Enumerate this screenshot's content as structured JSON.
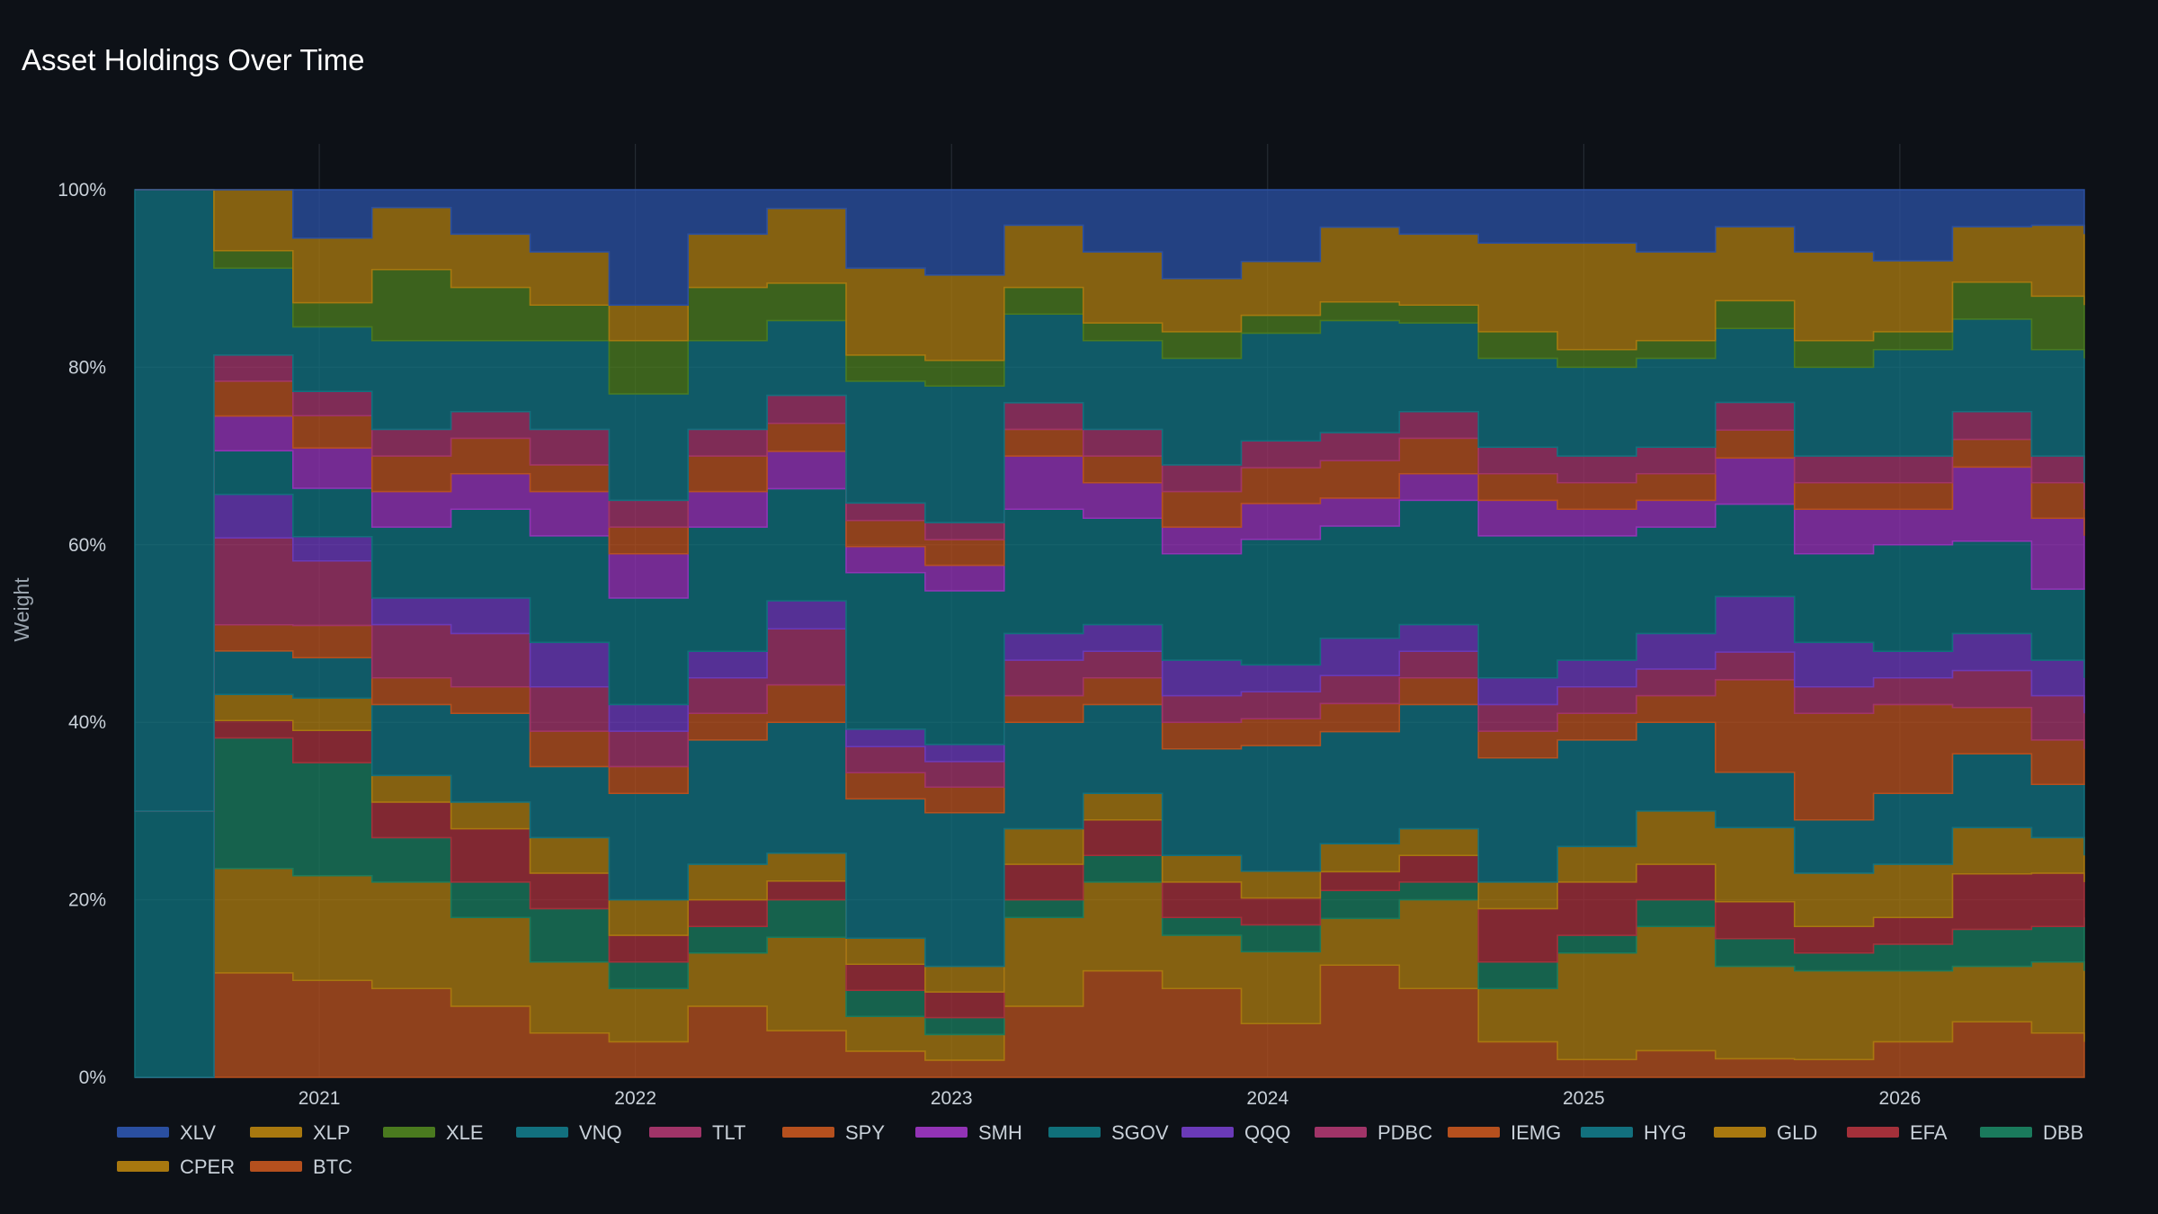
{
  "chart_data": {
    "type": "area",
    "stacked": true,
    "normalized": true,
    "title": "Asset Holdings Over Time",
    "ylabel": "Weight",
    "xlabel": "",
    "ylim": [
      0,
      100
    ],
    "y_ticks": [
      "0%",
      "20%",
      "40%",
      "60%",
      "80%",
      "100%"
    ],
    "x_ticks": [
      "2021",
      "2022",
      "2023",
      "2024",
      "2025",
      "2026"
    ],
    "x": [
      "2020-06",
      "2020-09",
      "2020-12",
      "2021-03",
      "2021-06",
      "2021-09",
      "2021-12",
      "2022-03",
      "2022-06",
      "2022-09",
      "2022-12",
      "2023-03",
      "2023-06",
      "2023-09",
      "2023-12",
      "2024-03",
      "2024-06",
      "2024-09",
      "2024-12",
      "2025-03",
      "2025-06",
      "2025-09",
      "2025-12",
      "2026-03",
      "2026-06",
      "2026-08"
    ],
    "grid": true,
    "legend_position": "bottom-left",
    "series": [
      {
        "name": "BTC",
        "color": "#b5501e",
        "values": [
          0,
          12,
          12,
          10,
          8,
          5,
          4,
          8,
          5,
          3,
          2,
          8,
          12,
          10,
          6,
          12,
          10,
          4,
          2,
          3,
          2,
          2,
          4,
          6,
          5,
          4
        ]
      },
      {
        "name": "CPER",
        "color": "#a8780f",
        "values": [
          0,
          12,
          13,
          12,
          10,
          8,
          6,
          6,
          10,
          4,
          3,
          10,
          10,
          6,
          8,
          5,
          10,
          6,
          12,
          14,
          10,
          10,
          8,
          6,
          8,
          8
        ]
      },
      {
        "name": "DBB",
        "color": "#1a7a5c",
        "values": [
          0,
          15,
          14,
          5,
          4,
          6,
          3,
          3,
          4,
          3,
          2,
          2,
          3,
          2,
          3,
          3,
          2,
          3,
          2,
          3,
          3,
          2,
          3,
          4,
          4,
          6
        ]
      },
      {
        "name": "EFA",
        "color": "#a3303a",
        "values": [
          0,
          2,
          4,
          4,
          6,
          4,
          3,
          3,
          2,
          3,
          3,
          4,
          4,
          4,
          3,
          2,
          3,
          6,
          6,
          4,
          4,
          3,
          3,
          6,
          6,
          4
        ]
      },
      {
        "name": "GLD",
        "color": "#a8780f",
        "values": [
          0,
          3,
          4,
          3,
          3,
          4,
          4,
          4,
          3,
          3,
          3,
          4,
          3,
          3,
          3,
          3,
          3,
          3,
          4,
          6,
          8,
          6,
          6,
          5,
          4,
          3
        ]
      },
      {
        "name": "HYG",
        "color": "#12707e",
        "values": [
          0,
          5,
          5,
          8,
          10,
          8,
          12,
          14,
          14,
          16,
          18,
          12,
          10,
          12,
          14,
          12,
          14,
          14,
          12,
          10,
          6,
          6,
          8,
          8,
          6,
          8
        ]
      },
      {
        "name": "IEMG",
        "color": "#b5501e",
        "values": [
          0,
          3,
          4,
          3,
          3,
          4,
          3,
          3,
          4,
          3,
          3,
          3,
          3,
          3,
          3,
          3,
          3,
          3,
          3,
          3,
          10,
          12,
          10,
          5,
          5,
          4
        ]
      },
      {
        "name": "PDBC",
        "color": "#a03468",
        "values": [
          0,
          10,
          8,
          6,
          6,
          5,
          4,
          4,
          6,
          3,
          3,
          4,
          3,
          3,
          3,
          3,
          3,
          3,
          3,
          3,
          3,
          3,
          3,
          4,
          5,
          4
        ]
      },
      {
        "name": "QQQ",
        "color": "#6a3ab8",
        "values": [
          0,
          5,
          3,
          3,
          4,
          5,
          3,
          3,
          3,
          2,
          2,
          3,
          3,
          4,
          3,
          4,
          3,
          3,
          3,
          4,
          6,
          5,
          3,
          4,
          4,
          4
        ]
      },
      {
        "name": "SGOV",
        "color": "#10707a",
        "values": [
          30,
          5,
          6,
          8,
          10,
          12,
          12,
          14,
          12,
          18,
          18,
          14,
          12,
          12,
          14,
          12,
          14,
          16,
          14,
          12,
          10,
          10,
          12,
          10,
          8,
          10
        ]
      },
      {
        "name": "SMH",
        "color": "#9233b5",
        "values": [
          0,
          4,
          5,
          4,
          4,
          5,
          5,
          4,
          4,
          3,
          3,
          6,
          4,
          3,
          4,
          3,
          3,
          4,
          3,
          3,
          5,
          5,
          4,
          8,
          8,
          6
        ]
      },
      {
        "name": "SPY",
        "color": "#b5501e",
        "values": [
          0,
          4,
          4,
          4,
          4,
          3,
          3,
          4,
          3,
          3,
          3,
          3,
          3,
          4,
          4,
          4,
          4,
          3,
          3,
          3,
          3,
          3,
          3,
          3,
          4,
          3
        ]
      },
      {
        "name": "TLT",
        "color": "#a03468",
        "values": [
          0,
          3,
          3,
          3,
          3,
          4,
          3,
          3,
          3,
          2,
          2,
          3,
          3,
          3,
          3,
          3,
          3,
          3,
          3,
          3,
          3,
          3,
          3,
          3,
          3,
          3
        ]
      },
      {
        "name": "VNQ",
        "color": "#12707e",
        "values": [
          70,
          10,
          8,
          10,
          8,
          10,
          12,
          10,
          8,
          14,
          16,
          10,
          10,
          12,
          12,
          12,
          10,
          10,
          10,
          10,
          8,
          10,
          12,
          10,
          12,
          14
        ]
      },
      {
        "name": "XLE",
        "color": "#4a7a1f",
        "values": [
          0,
          2,
          3,
          8,
          6,
          4,
          6,
          6,
          4,
          3,
          3,
          3,
          2,
          3,
          2,
          2,
          2,
          3,
          2,
          2,
          3,
          3,
          2,
          4,
          6,
          6
        ]
      },
      {
        "name": "XLP",
        "color": "#a8780f",
        "values": [
          0,
          7,
          8,
          7,
          6,
          6,
          4,
          6,
          8,
          10,
          10,
          7,
          8,
          6,
          6,
          8,
          8,
          10,
          12,
          10,
          8,
          10,
          8,
          6,
          8,
          8
        ]
      },
      {
        "name": "XLV",
        "color": "#2a4fa0",
        "values": [
          0,
          0,
          6,
          2,
          5,
          7,
          13,
          5,
          2,
          9,
          10,
          4,
          7,
          10,
          8,
          4,
          5,
          6,
          6,
          7,
          4,
          7,
          8,
          4,
          4,
          5
        ]
      }
    ]
  }
}
